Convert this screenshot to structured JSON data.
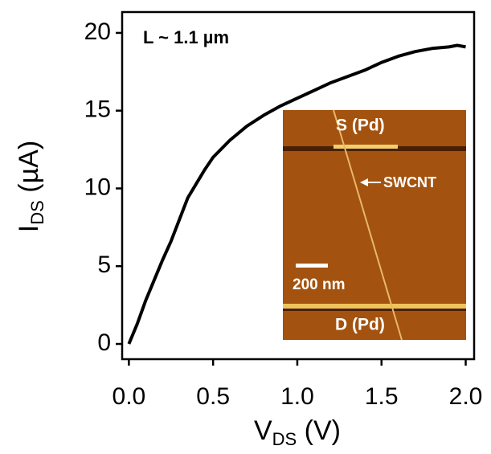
{
  "chart_data": {
    "type": "line",
    "annotation": "L ~ 1.1 µm",
    "x_label": [
      "V",
      "DS",
      " (V)"
    ],
    "y_label": [
      "I",
      "DS",
      " (µA)"
    ],
    "x": [
      0,
      0.05,
      0.1,
      0.15,
      0.2,
      0.25,
      0.3,
      0.35,
      0.4,
      0.45,
      0.5,
      0.6,
      0.7,
      0.8,
      0.9,
      1.0,
      1.1,
      1.2,
      1.3,
      1.4,
      1.5,
      1.6,
      1.7,
      1.8,
      1.9,
      1.95,
      2.0
    ],
    "values": [
      0,
      1.3,
      2.8,
      4.1,
      5.4,
      6.6,
      8.0,
      9.4,
      10.3,
      11.2,
      12.0,
      13.1,
      14.0,
      14.7,
      15.3,
      15.8,
      16.3,
      16.8,
      17.2,
      17.6,
      18.1,
      18.5,
      18.8,
      19.0,
      19.1,
      19.2,
      19.1
    ],
    "color": "#000000",
    "xlim": [
      -0.04,
      2.05
    ],
    "ylim": [
      -0.98,
      21.34
    ],
    "xticks": [
      {
        "value": 0,
        "label": "0.0"
      },
      {
        "value": 0.5,
        "label": "0.5"
      },
      {
        "value": 1,
        "label": "1.0"
      },
      {
        "value": 1.5,
        "label": "1.5"
      },
      {
        "value": 2,
        "label": "2.0"
      }
    ],
    "yticks": [
      0,
      5,
      10,
      15,
      20
    ],
    "inset_labels": [
      "S (Pd)",
      "SWCNT",
      "200 nm",
      "D (Pd)"
    ]
  }
}
